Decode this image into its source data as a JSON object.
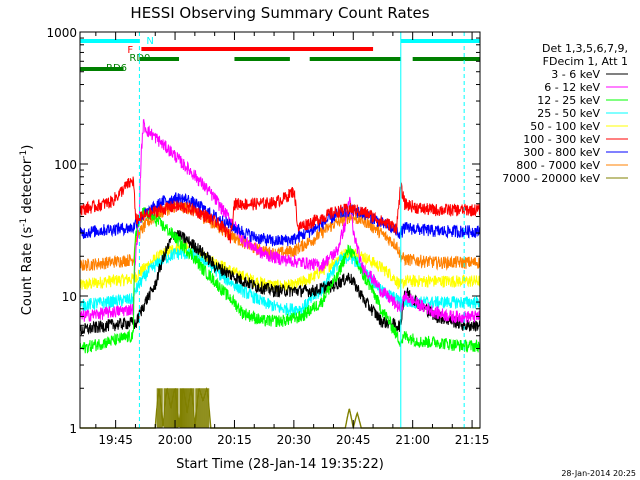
{
  "chart_data": {
    "type": "line",
    "title": "HESSI Observing Summary Count Rates",
    "xlabel": "Start Time (28-Jan-14 19:35:22)",
    "ylabel": "Count Rate (s⁻¹ detector⁻¹)",
    "ylabel_parts": {
      "a": "Count Rate (s",
      "b": "-1",
      "c": " detector",
      "d": "-1",
      "e": ")"
    },
    "x_ticks": [
      "19:45",
      "20:00",
      "20:15",
      "20:30",
      "20:45",
      "21:00",
      "21:15"
    ],
    "x_tick_minutes": [
      45,
      60,
      75,
      90,
      105,
      120,
      135
    ],
    "xlim_minutes": [
      36,
      137
    ],
    "y_ticks": [
      "1",
      "10",
      "100",
      "1000"
    ],
    "y_tick_values": [
      1,
      10,
      100,
      1000
    ],
    "yscale": "log",
    "ylim": [
      1,
      1000
    ],
    "timestamp": "28-Jan-2014 20:25",
    "legend_header": [
      "Det 1,3,5,6,7,9,",
      "FDecim 1, Att 1"
    ],
    "legend_position": "right",
    "series": [
      {
        "name": "3 - 6 keV",
        "color": "#000000",
        "x": [
          36,
          43,
          49.5,
          50,
          55,
          60,
          65,
          70,
          75,
          80,
          85,
          90,
          95,
          100,
          104,
          108,
          112,
          116,
          117,
          118,
          122,
          126,
          130,
          133
        ],
        "y": [
          5.5,
          6,
          6.3,
          6,
          12,
          30,
          24,
          17,
          14,
          12,
          11,
          11,
          11,
          12,
          14,
          9,
          6.5,
          6,
          6,
          11,
          8.5,
          7,
          6.5,
          6
        ]
      },
      {
        "name": "6 - 12 keV",
        "color": "#ff00ff",
        "x": [
          36,
          43,
          49.5,
          51,
          52,
          53,
          57,
          62,
          67,
          72,
          77,
          82,
          87,
          92,
          97,
          101,
          103,
          104,
          105,
          107,
          112,
          116,
          117,
          118,
          122,
          126,
          130,
          133
        ],
        "y": [
          7,
          7.5,
          8,
          40,
          200,
          180,
          140,
          100,
          70,
          45,
          27,
          21,
          19,
          18,
          17,
          22,
          35,
          55,
          30,
          17,
          11,
          8.5,
          8,
          10,
          8.5,
          7.5,
          7,
          7
        ]
      },
      {
        "name": "12 - 25 keV",
        "color": "#00ff00",
        "x": [
          36,
          43,
          49.5,
          50,
          52,
          57,
          62,
          67,
          72,
          77,
          82,
          87,
          92,
          97,
          101,
          104,
          107,
          112,
          116,
          117,
          118,
          122,
          126,
          130,
          133
        ],
        "y": [
          4,
          4.5,
          5,
          30,
          44,
          34,
          24,
          16,
          11,
          7.5,
          6.5,
          6.5,
          7,
          9,
          14,
          23,
          15,
          8,
          5,
          4.5,
          5,
          4.5,
          4.5,
          4.3,
          4.2
        ]
      },
      {
        "name": "25 - 50 keV",
        "color": "#00ffff",
        "x": [
          36,
          43,
          49.5,
          50,
          53,
          57,
          60,
          64,
          68,
          72,
          77,
          82,
          87,
          92,
          97,
          100,
          102,
          104,
          106,
          108,
          112,
          116,
          117,
          118,
          122,
          126,
          130,
          133
        ],
        "y": [
          8.5,
          9,
          9.5,
          11,
          15,
          19,
          21,
          21,
          18,
          14,
          11,
          9,
          8,
          8,
          11,
          16,
          19,
          20,
          18,
          15,
          11,
          9.5,
          9,
          9,
          9,
          9,
          9,
          9
        ]
      },
      {
        "name": "50 - 100 keV",
        "color": "#ffff00",
        "x": [
          36,
          43,
          49.5,
          50,
          53,
          57,
          60,
          63,
          66,
          70,
          75,
          80,
          85,
          90,
          95,
          100,
          103,
          106,
          110,
          114,
          116,
          117,
          118,
          122,
          126,
          130,
          133
        ],
        "y": [
          12,
          13,
          13.5,
          14,
          17,
          21,
          23,
          23,
          21,
          18,
          15,
          13,
          12,
          12,
          14,
          18,
          21,
          21,
          18,
          15,
          13,
          12,
          13,
          13,
          13,
          13,
          13
        ]
      },
      {
        "name": "100 - 300 keV",
        "color": "#ff0000",
        "x": [
          36,
          40,
          44,
          46,
          48,
          49.5,
          50,
          52,
          56,
          60,
          64,
          68,
          72,
          74,
          75,
          80,
          85,
          88,
          90,
          91,
          95,
          100,
          104,
          108,
          112,
          116,
          117,
          118,
          122,
          126,
          130,
          133
        ],
        "y": [
          45,
          48,
          52,
          60,
          70,
          75,
          38,
          40,
          45,
          48,
          46,
          40,
          33,
          28,
          50,
          50,
          51,
          56,
          63,
          33,
          37,
          43,
          46,
          43,
          37,
          33,
          67,
          50,
          46,
          45,
          45,
          45
        ]
      },
      {
        "name": "300 - 800 keV",
        "color": "#0000ff",
        "x": [
          36,
          43,
          49.5,
          50,
          53,
          57,
          60,
          63,
          66,
          70,
          75,
          80,
          85,
          90,
          95,
          100,
          104,
          108,
          112,
          116,
          117,
          118,
          122,
          126,
          130,
          133
        ],
        "y": [
          30,
          32,
          33,
          36,
          43,
          52,
          55,
          54,
          48,
          40,
          33,
          28,
          26,
          27,
          32,
          40,
          45,
          42,
          36,
          31,
          30,
          33,
          32,
          31,
          31,
          31
        ]
      },
      {
        "name": "800 - 7000 keV",
        "color": "#ff8000",
        "x": [
          36,
          43,
          49.5,
          50,
          53,
          57,
          60,
          63,
          66,
          70,
          75,
          80,
          85,
          90,
          95,
          100,
          104,
          108,
          112,
          116,
          117,
          118,
          122,
          126,
          130,
          133
        ],
        "y": [
          17,
          18,
          19,
          27,
          36,
          44,
          48,
          47,
          42,
          35,
          28,
          23,
          21,
          22,
          27,
          35,
          40,
          37,
          30,
          24,
          20,
          19,
          18.5,
          18,
          18,
          18
        ]
      },
      {
        "name": "7000 - 20000 keV",
        "color": "#808000",
        "x": [
          36,
          50,
          55,
          56,
          57,
          58,
          59,
          60,
          61,
          62,
          63,
          64,
          65,
          66,
          67,
          68,
          69,
          70,
          75,
          80,
          100,
          103,
          104,
          105,
          106,
          107,
          110,
          133
        ],
        "y": [
          1,
          1,
          1,
          2,
          1,
          2,
          1.4,
          2,
          1,
          2,
          1.3,
          2,
          1,
          2,
          1.6,
          2,
          1,
          1,
          1,
          1,
          1,
          1,
          1.4,
          1,
          1.3,
          1,
          1,
          1
        ]
      }
    ],
    "flag_bars": [
      {
        "label": "N",
        "color": "#00ffff",
        "segments": [
          [
            36,
            51
          ],
          [
            117,
            137
          ]
        ]
      },
      {
        "label": "F",
        "color": "#ff0000",
        "segments": [
          [
            51.5,
            110
          ]
        ]
      },
      {
        "label": "RD0",
        "color": "#008000",
        "segments": [
          [
            51,
            61
          ],
          [
            75,
            89
          ],
          [
            94,
            117
          ],
          [
            120,
            137
          ]
        ]
      },
      {
        "label": "RD6",
        "color": "#008000",
        "segments": [
          [
            36,
            47
          ]
        ]
      }
    ],
    "markers": [
      {
        "minutes": 51,
        "style": "dashed"
      },
      {
        "minutes": 117,
        "style": "solid"
      },
      {
        "minutes": 133,
        "style": "dashed"
      }
    ],
    "marker_color": "#00ffff",
    "grid": false
  }
}
